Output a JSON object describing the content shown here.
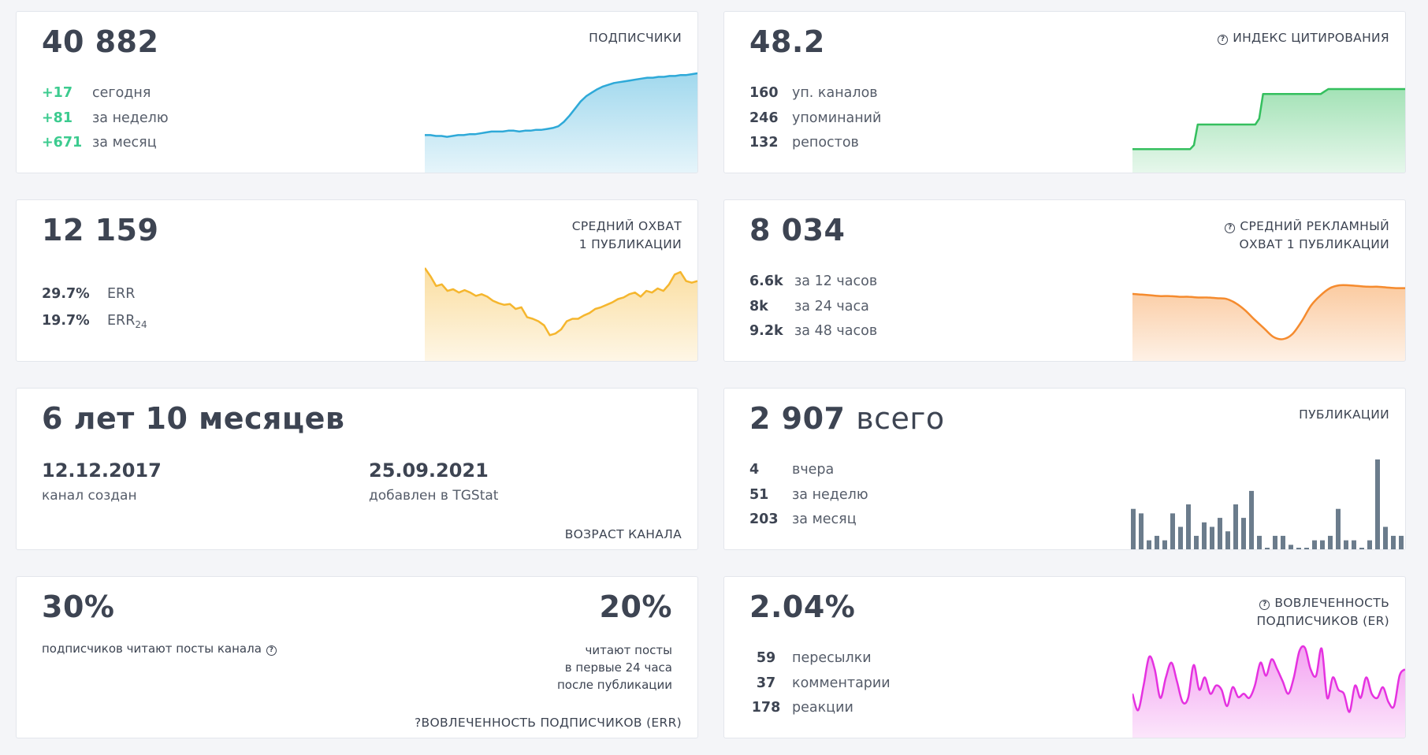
{
  "subscribers": {
    "value": "40 882",
    "label": "ПОДПИСЧИКИ",
    "stats": [
      {
        "value": "+17",
        "desc": "сегодня"
      },
      {
        "value": "+81",
        "desc": "за неделю"
      },
      {
        "value": "+671",
        "desc": "за месяц"
      }
    ],
    "color": "#2ea9d8",
    "chart": [
      30,
      30,
      29,
      29,
      28,
      29,
      30,
      30,
      31,
      31,
      32,
      33,
      34,
      34,
      34,
      35,
      35,
      34,
      35,
      35,
      36,
      36,
      37,
      38,
      40,
      45,
      52,
      60,
      68,
      74,
      78,
      82,
      85,
      87,
      89,
      90,
      91,
      92,
      93,
      94,
      95,
      95,
      96,
      96,
      97,
      97,
      98,
      98,
      99,
      100
    ]
  },
  "citation": {
    "value": "48.2",
    "label": "ИНДЕКС ЦИТИРОВАНИЯ",
    "icon": "question-circle-icon",
    "stats": [
      {
        "value": "160",
        "desc": "уп. каналов"
      },
      {
        "value": "246",
        "desc": "упоминаний"
      },
      {
        "value": "132",
        "desc": "репостов"
      }
    ],
    "color": "#34bf5e",
    "chart": [
      15,
      15,
      15,
      15,
      15,
      15,
      15,
      15,
      15,
      15,
      15,
      15,
      15,
      15,
      15,
      15,
      20,
      45,
      45,
      45,
      45,
      45,
      45,
      45,
      45,
      45,
      45,
      45,
      45,
      45,
      45,
      45,
      45,
      52,
      82,
      82,
      82,
      82,
      82,
      82,
      82,
      82,
      82,
      82,
      82,
      82,
      82,
      82,
      82,
      82,
      85,
      88,
      88,
      88,
      88,
      88,
      88,
      88,
      88,
      88,
      88,
      88,
      88,
      88,
      88,
      88,
      88,
      88,
      88,
      88,
      88,
      88
    ]
  },
  "reach": {
    "value": "12 159",
    "label_line1": "СРЕДНИЙ ОХВАТ",
    "label_line2": "1 ПУБЛИКАЦИИ",
    "err_value": "29.7%",
    "err_label": "ERR",
    "err24_value": "19.7%",
    "err24_label": "ERR",
    "err24_sub": "24",
    "color": "#f5b62e",
    "chart": [
      100,
      90,
      78,
      80,
      72,
      74,
      70,
      73,
      70,
      66,
      68,
      65,
      60,
      57,
      55,
      56,
      50,
      52,
      40,
      38,
      35,
      30,
      18,
      20,
      25,
      35,
      38,
      38,
      42,
      45,
      50,
      52,
      55,
      58,
      62,
      64,
      68,
      70,
      65,
      72,
      70,
      75,
      72,
      80,
      92,
      95,
      84,
      82,
      84
    ]
  },
  "ad_reach": {
    "value": "8 034",
    "label_line1": "СРЕДНИЙ РЕКЛАМНЫЙ",
    "label_line2": "ОХВАТ 1 ПУБЛИКАЦИИ",
    "icon": "question-circle-icon",
    "stats": [
      {
        "value": "6.6k",
        "desc": "за 12 часов"
      },
      {
        "value": "8k",
        "desc": "за 24 часа"
      },
      {
        "value": "9.2k",
        "desc": "за 48 часов"
      }
    ],
    "color": "#f58b2e",
    "chart": [
      78,
      77,
      76,
      75,
      75,
      74,
      74,
      73,
      73,
      72,
      71,
      65,
      55,
      42,
      30,
      18,
      15,
      22,
      40,
      62,
      76,
      86,
      90,
      90,
      89,
      88,
      88,
      87,
      86,
      86
    ]
  },
  "age": {
    "value": "6 лет 10 месяцев",
    "created_date": "12.12.2017",
    "created_label": "канал создан",
    "added_date": "25.09.2021",
    "added_label": "добавлен в TGStat",
    "label": "ВОЗРАСТ КАНАЛА"
  },
  "publications": {
    "value": "2 907",
    "value_suffix": "всего",
    "label": "ПУБЛИКАЦИИ",
    "stats": [
      {
        "value": "4",
        "desc": "вчера"
      },
      {
        "value": "51",
        "desc": "за неделю"
      },
      {
        "value": "203",
        "desc": "за месяц"
      }
    ],
    "color": "#6b7c8c",
    "chart": [
      9,
      8,
      2,
      3,
      2,
      8,
      5,
      10,
      3,
      6,
      5,
      7,
      4,
      10,
      7,
      13,
      3,
      0,
      3,
      3,
      1,
      0,
      0,
      2,
      2,
      3,
      9,
      2,
      2,
      0,
      2,
      20,
      5,
      3,
      3
    ]
  },
  "err_card": {
    "value_left": "30%",
    "desc_left": "подписчиков читают посты канала",
    "value_right": "20%",
    "desc_right_1": "читают посты",
    "desc_right_2": "в первые 24 часа",
    "desc_right_3": "после публикации",
    "label": "ВОВЛЕЧЕННОСТЬ ПОДПИСЧИКОВ (ERR)"
  },
  "er_card": {
    "value": "2.04%",
    "label_line1": "ВОВЛЕЧЕННОСТЬ",
    "label_line2": "ПОДПИСЧИКОВ (ER)",
    "icon": "question-circle-icon",
    "stats": [
      {
        "value": "59",
        "desc": "пересылки"
      },
      {
        "value": "37",
        "desc": "комментарии"
      },
      {
        "value": "178",
        "desc": "реакции"
      }
    ],
    "color": "#e532e0",
    "chart": [
      40,
      20,
      50,
      85,
      70,
      35,
      60,
      78,
      55,
      30,
      35,
      75,
      45,
      60,
      40,
      50,
      45,
      25,
      48,
      36,
      40,
      35,
      50,
      78,
      62,
      82,
      70,
      55,
      40,
      60,
      92,
      96,
      70,
      62,
      95,
      35,
      60,
      45,
      40,
      18,
      50,
      35,
      60,
      40,
      35,
      48,
      30,
      25,
      62,
      70
    ]
  }
}
